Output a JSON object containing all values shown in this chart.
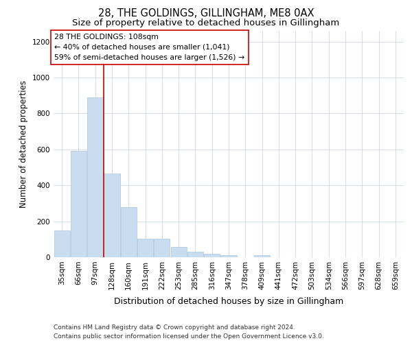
{
  "title1": "28, THE GOLDINGS, GILLINGHAM, ME8 0AX",
  "title2": "Size of property relative to detached houses in Gillingham",
  "xlabel": "Distribution of detached houses by size in Gillingham",
  "ylabel": "Number of detached properties",
  "categories": [
    "35sqm",
    "66sqm",
    "97sqm",
    "128sqm",
    "160sqm",
    "191sqm",
    "222sqm",
    "253sqm",
    "285sqm",
    "316sqm",
    "347sqm",
    "378sqm",
    "409sqm",
    "441sqm",
    "472sqm",
    "503sqm",
    "534sqm",
    "566sqm",
    "597sqm",
    "628sqm",
    "659sqm"
  ],
  "values": [
    150,
    590,
    890,
    465,
    280,
    105,
    105,
    58,
    30,
    20,
    13,
    0,
    10,
    0,
    0,
    0,
    0,
    0,
    0,
    0,
    0
  ],
  "bar_color": "#c9ddf0",
  "bar_edge_color": "#aac4e0",
  "grid_color": "#d5dff0",
  "annotation_line1": "28 THE GOLDINGS: 108sqm",
  "annotation_line2": "← 40% of detached houses are smaller (1,041)",
  "annotation_line3": "59% of semi-detached houses are larger (1,526) →",
  "vline_color": "#cc0000",
  "vline_x_index": 2.5,
  "footnote1": "Contains HM Land Registry data © Crown copyright and database right 2024.",
  "footnote2": "Contains public sector information licensed under the Open Government Licence v3.0.",
  "ylim": [
    0,
    1260
  ],
  "yticks": [
    0,
    200,
    400,
    600,
    800,
    1000,
    1200
  ],
  "title1_fontsize": 10.5,
  "title2_fontsize": 9.5,
  "xlabel_fontsize": 9,
  "ylabel_fontsize": 8.5,
  "tick_fontsize": 7.5,
  "annotation_fontsize": 7.8,
  "footnote_fontsize": 6.5
}
